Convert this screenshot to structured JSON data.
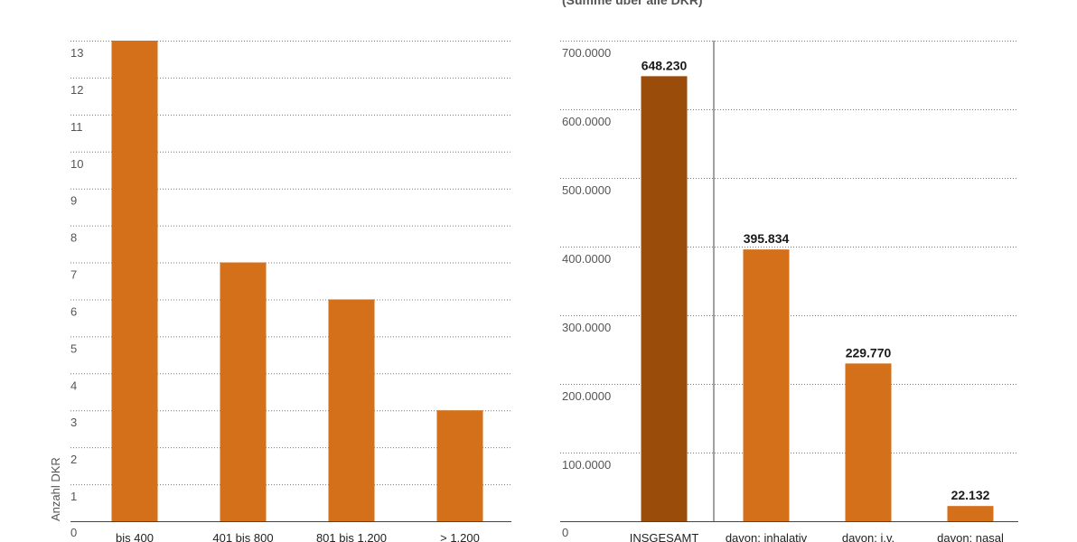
{
  "chart_data": [
    {
      "type": "bar",
      "title": "",
      "xlabel": "",
      "ylabel": "Anzahl DKR",
      "ylim": [
        0,
        13
      ],
      "yticks": [
        "0",
        "1",
        "2",
        "3",
        "4",
        "5",
        "6",
        "7",
        "8",
        "9",
        "10",
        "11",
        "12",
        "13"
      ],
      "categories": [
        "bis 400",
        "401 bis 800",
        "801 bis 1.200",
        "> 1.200"
      ],
      "values": [
        13,
        7,
        6,
        3
      ],
      "colors": [
        "#d46f1a",
        "#d46f1a",
        "#d46f1a",
        "#d46f1a"
      ],
      "data_labels": [
        "",
        "",
        "",
        ""
      ],
      "grid": true
    },
    {
      "type": "bar",
      "title": "(Summe über alle DKR)",
      "xlabel": "",
      "ylabel": "",
      "ylim": [
        0,
        700000
      ],
      "yticks": [
        "0",
        "100.0000",
        "200.0000",
        "300.0000",
        "400.0000",
        "500.0000",
        "600.0000",
        "700.0000"
      ],
      "categories": [
        "INSGESAMT",
        "davon: inhalativ",
        "davon: i.v.",
        "davon: nasal"
      ],
      "values": [
        648230,
        395834,
        229770,
        22132
      ],
      "data_labels": [
        "648.230",
        "395.834",
        "229.770",
        "22.132"
      ],
      "colors": [
        "#9a4d0b",
        "#d46f1a",
        "#d46f1a",
        "#d46f1a"
      ],
      "separator_after_index": 0,
      "grid": true
    }
  ]
}
